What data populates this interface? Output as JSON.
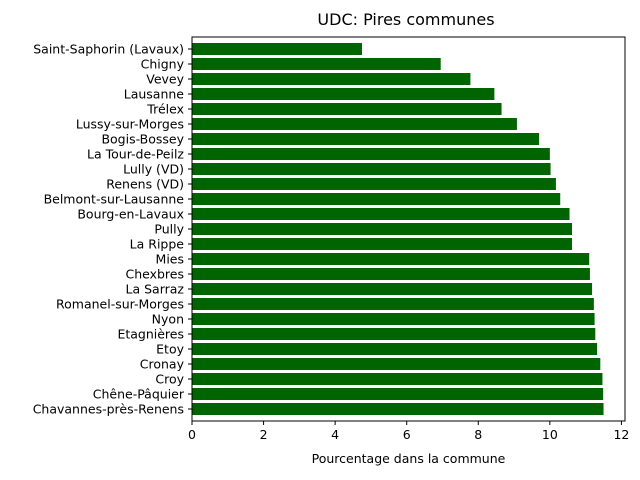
{
  "chart_data": {
    "type": "bar",
    "orientation": "horizontal",
    "title": "UDC: Pires communes",
    "xlabel": "Pourcentage dans la commune",
    "ylabel": "",
    "xlim": [
      0,
      12.1
    ],
    "xticks": [
      0,
      2,
      4,
      6,
      8,
      10,
      12
    ],
    "bar_color": "#006400",
    "categories": [
      "Saint-Saphorin (Lavaux)",
      "Chigny",
      "Vevey",
      "Lausanne",
      "Trélex",
      "Lussy-sur-Morges",
      "Bogis-Bossey",
      "La Tour-de-Peilz",
      "Lully (VD)",
      "Renens (VD)",
      "Belmont-sur-Lausanne",
      "Bourg-en-Lavaux",
      "Pully",
      "La Rippe",
      "Mies",
      "Chexbres",
      "La Sarraz",
      "Romanel-sur-Morges",
      "Nyon",
      "Etagnières",
      "Etoy",
      "Cronay",
      "Croy",
      "Chêne-Pâquier",
      "Chavannes-près-Renens"
    ],
    "values": [
      4.75,
      6.95,
      7.78,
      8.45,
      8.65,
      9.08,
      9.7,
      10.0,
      10.02,
      10.17,
      10.29,
      10.55,
      10.62,
      10.62,
      11.1,
      11.12,
      11.18,
      11.23,
      11.25,
      11.27,
      11.32,
      11.41,
      11.47,
      11.49,
      11.5
    ],
    "grid": false,
    "legend": "none"
  }
}
